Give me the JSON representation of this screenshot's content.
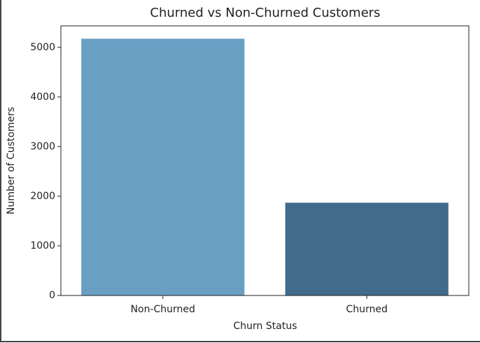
{
  "chart_data": {
    "type": "bar",
    "title": "Churned vs Non-Churned Customers",
    "x_label": "Churn Status",
    "y_label": "Number of Customers",
    "categories": [
      "Non-Churned",
      "Churned"
    ],
    "values": [
      5174,
      1869
    ],
    "colors": [
      "#6a9fc4",
      "#426a8b"
    ],
    "ylim": [
      0,
      5433
    ],
    "yticks": [
      0,
      1000,
      2000,
      3000,
      4000,
      5000
    ]
  }
}
